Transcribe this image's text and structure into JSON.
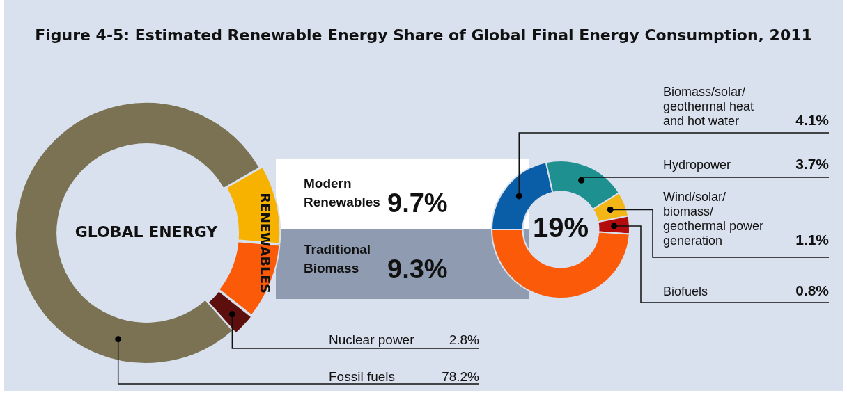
{
  "chart_data": [
    {
      "type": "donut",
      "title": "Figure 4-5: Estimated Renewable Energy Share of Global Final Energy Consumption, 2011",
      "categories": [
        "Modern Renewables",
        "Traditional Biomass",
        "Nuclear power",
        "Fossil fuels"
      ],
      "values": [
        9.7,
        9.3,
        2.8,
        78.2
      ],
      "colors": [
        "#f7b200",
        "#fb5a09",
        "#5c0f0c",
        "#7a7252"
      ],
      "value_labels": [
        "9.7%",
        "9.3%",
        "2.8%",
        "78.2%"
      ],
      "annotations": [
        "GLOBAL ENERGY",
        "RENEWABLES"
      ]
    },
    {
      "type": "donut",
      "categories": [
        "Biomass/solar/geothermal heat and hot water",
        "Hydropower",
        "Wind/solar/biomass/geothermal power generation",
        "Biofuels",
        null
      ],
      "values": [
        4.1,
        3.7,
        1.1,
        0.8,
        9.3
      ],
      "colors": [
        "#0a5ea8",
        "#1e9090",
        "#f2b617",
        "#b20d0c",
        "#fb5a09"
      ],
      "value_labels": [
        "4.1%",
        "3.7%",
        "1.1%",
        "0.8%",
        null
      ],
      "annotations": [
        "19%"
      ]
    }
  ]
}
